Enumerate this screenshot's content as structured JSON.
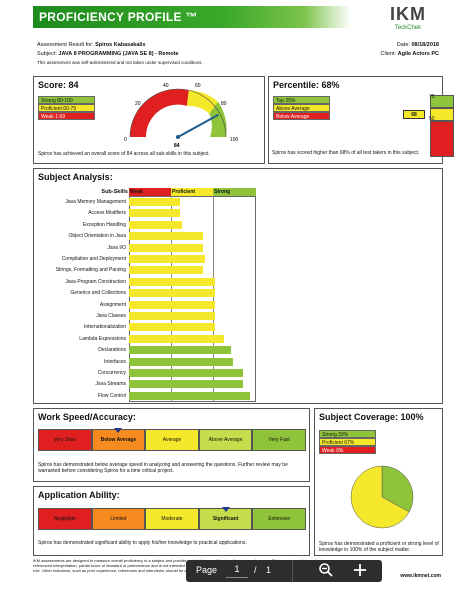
{
  "header": {
    "title": "PROFICIENCY PROFILE ™",
    "logo_main": "IKM",
    "logo_sub": "TeckChek"
  },
  "info": {
    "result_label": "Assessment Result for:",
    "name": "Spiros Kabasakalis",
    "date_label": "Date:",
    "date": "08/18/2018",
    "subject_label": "Subject:",
    "subject": "JAVA 8 PROGRAMMING (JAVA SE 8) - Remote",
    "client_label": "Client:",
    "client": "Agile Actors PC",
    "note": "This assessment was self-administered and not taken under supervised conditions."
  },
  "score": {
    "title": "Score: 84",
    "legend": [
      "Strong 80-100",
      "Proficient 60-79",
      "Weak 1-59"
    ],
    "ticks": [
      "0",
      "20",
      "40",
      "60",
      "80",
      "100"
    ],
    "value": 84,
    "value_label": "84",
    "desc": "Spiros has achieved an overall score of 84 across all sub-skills in this subject."
  },
  "percentile": {
    "title": "Percentile: 68%",
    "legend": [
      "Top 25%",
      "Above Average",
      "Below Average"
    ],
    "value": 68,
    "value_label": "68",
    "marks": [
      "75",
      "50"
    ],
    "desc": "Spiros has scored higher than 68% of all test takers in this subject."
  },
  "subject_analysis": {
    "title": "Subject Analysis:",
    "col_label": "Sub-Skills",
    "bands": [
      "Weak",
      "Proficient",
      "Strong"
    ],
    "chart_data": {
      "type": "bar",
      "categories": [
        "Java Memory Management",
        "Access Modifiers",
        "Exception Handling",
        "Object Orientation in Java",
        "Java I/O",
        "Compilation and Deployment",
        "Strings, Formatting and Parsing",
        "Java Program Construction",
        "Generics and Collections",
        "Assignment",
        "Java Classes",
        "Internationalization",
        "Lambda Expressions",
        "Declarations",
        "Interfaces",
        "Concurrency",
        "Java Streams",
        "Flow Control"
      ],
      "values": [
        40,
        40,
        42,
        58,
        58,
        60,
        58,
        68,
        68,
        68,
        68,
        68,
        75,
        80,
        82,
        90,
        90,
        95
      ],
      "ylim": [
        0,
        100
      ]
    }
  },
  "work_speed": {
    "title": "Work Speed/Accuracy:",
    "levels": [
      "Very Slow",
      "Below Average",
      "Average",
      "Above Average",
      "Very Fast"
    ],
    "selected": 1,
    "desc": "Spiros has demonstrated below average speed in analyzing and answering the questions. Further review may be warranted before considering Spiros for a time critical project."
  },
  "coverage": {
    "title": "Subject Coverage: 100%",
    "legend": [
      "Strong 33%",
      "Proficient 67%",
      "Weak 0%"
    ],
    "chart_data": {
      "type": "pie",
      "categories": [
        "Strong",
        "Proficient",
        "Weak"
      ],
      "values": [
        33,
        67,
        0
      ]
    },
    "desc": "Spiros has demonstrated a proficient or strong level of knowledge in 100% of the subject matter."
  },
  "application": {
    "title": "Application Ability:",
    "levels": [
      "Negligible",
      "Limited",
      "Moderate",
      "Significant",
      "Extensive"
    ],
    "selected": 3,
    "desc": "Spiros has demonstrated significant ability to apply his/her knowledge to practical applications."
  },
  "footer": {
    "line1": "IKM assessments are designed to measure overall proficiency in a subject and provide insight into specific strengths and weaknesses. This report provides a criterion-",
    "line2": "referenced interpretation, partial score or standard of performance and is not intended to be used as the sole measure of a candidate for employment or any given",
    "line3": "role. Other indicators, such as prior experience, references and interviews, should be considered prior to any employment or business decision.",
    "copyright": "Copyright © 1998-2018 Teck Chek, Inc. All rights reserved.",
    "website": "www.ikmnet.com"
  },
  "toolbar": {
    "page_label": "Page",
    "page_current": "1",
    "separator": "/",
    "page_total": "1"
  }
}
